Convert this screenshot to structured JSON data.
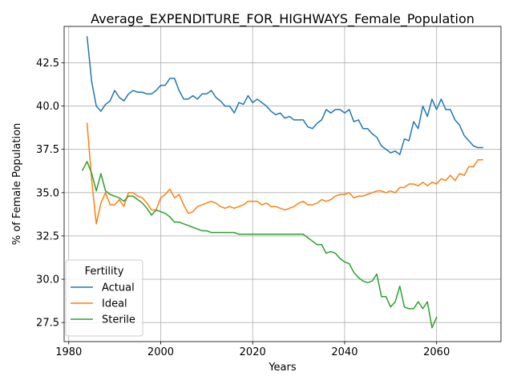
{
  "chart_data": {
    "type": "line",
    "title": "Average_EXPENDITURE_FOR_HIGHWAYS_Female_Population",
    "xlabel": "Years",
    "ylabel": "% of Female Population",
    "xlim": [
      1979,
      2074
    ],
    "ylim": [
      26.4,
      44.6
    ],
    "xticks": [
      1980,
      2000,
      2020,
      2040,
      2060
    ],
    "yticks": [
      27.5,
      30.0,
      32.5,
      35.0,
      37.5,
      40.0,
      42.5
    ],
    "xtick_labels": [
      "1980",
      "2000",
      "2020",
      "2040",
      "2060"
    ],
    "ytick_labels": [
      "27.5",
      "30.0",
      "32.5",
      "35.0",
      "37.5",
      "40.0",
      "42.5"
    ],
    "grid": true,
    "legend": {
      "title": "Fertility",
      "position": "lower-left"
    },
    "series": [
      {
        "name": "Actual",
        "color": "#1f77b4",
        "x": [
          1984,
          1985,
          1986,
          1987,
          1988,
          1989,
          1990,
          1991,
          1992,
          1993,
          1994,
          1995,
          1996,
          1997,
          1998,
          1999,
          2000,
          2001,
          2002,
          2003,
          2004,
          2005,
          2006,
          2007,
          2008,
          2009,
          2010,
          2011,
          2012,
          2013,
          2014,
          2015,
          2016,
          2017,
          2018,
          2019,
          2020,
          2021,
          2022,
          2023,
          2024,
          2025,
          2026,
          2027,
          2028,
          2029,
          2030,
          2031,
          2032,
          2033,
          2034,
          2035,
          2036,
          2037,
          2038,
          2039,
          2040,
          2041,
          2042,
          2043,
          2044,
          2045,
          2046,
          2047,
          2048,
          2049,
          2050,
          2051,
          2052,
          2053,
          2054,
          2055,
          2056,
          2057,
          2058,
          2059,
          2060,
          2061,
          2062,
          2063,
          2064,
          2065,
          2066,
          2067,
          2068,
          2069,
          2070
        ],
        "y": [
          44.0,
          41.4,
          40.0,
          39.7,
          40.1,
          40.3,
          40.9,
          40.5,
          40.3,
          40.7,
          40.9,
          40.8,
          40.8,
          40.7,
          40.7,
          40.9,
          41.2,
          41.2,
          41.6,
          41.6,
          40.9,
          40.4,
          40.4,
          40.6,
          40.4,
          40.7,
          40.7,
          40.9,
          40.5,
          40.3,
          40.0,
          40.0,
          39.6,
          40.2,
          40.1,
          40.6,
          40.2,
          40.4,
          40.2,
          40.0,
          39.7,
          39.5,
          39.6,
          39.3,
          39.4,
          39.2,
          39.2,
          39.2,
          38.8,
          38.7,
          39.0,
          39.2,
          39.8,
          39.6,
          39.8,
          39.8,
          39.6,
          39.8,
          39.1,
          39.2,
          38.7,
          38.7,
          38.4,
          38.2,
          37.7,
          37.5,
          37.3,
          37.4,
          37.2,
          38.1,
          38.0,
          39.1,
          38.7,
          40.0,
          39.4,
          40.4,
          39.8,
          40.4,
          39.8,
          39.8,
          39.2,
          38.9,
          38.3,
          38.0,
          37.7,
          37.6,
          37.6
        ]
      },
      {
        "name": "Ideal",
        "color": "#ff7f0e",
        "x": [
          1984,
          1985,
          1986,
          1987,
          1988,
          1989,
          1990,
          1991,
          1992,
          1993,
          1994,
          1995,
          1996,
          1997,
          1998,
          1999,
          2000,
          2001,
          2002,
          2003,
          2004,
          2005,
          2006,
          2007,
          2008,
          2009,
          2010,
          2011,
          2012,
          2013,
          2014,
          2015,
          2016,
          2017,
          2018,
          2019,
          2020,
          2021,
          2022,
          2023,
          2024,
          2025,
          2026,
          2027,
          2028,
          2029,
          2030,
          2031,
          2032,
          2033,
          2034,
          2035,
          2036,
          2037,
          2038,
          2039,
          2040,
          2041,
          2042,
          2043,
          2044,
          2045,
          2046,
          2047,
          2048,
          2049,
          2050,
          2051,
          2052,
          2053,
          2054,
          2055,
          2056,
          2057,
          2058,
          2059,
          2060,
          2061,
          2062,
          2063,
          2064,
          2065,
          2066,
          2067,
          2068,
          2069,
          2070
        ],
        "y": [
          39.0,
          35.7,
          33.2,
          34.4,
          35.0,
          34.3,
          34.3,
          34.6,
          34.2,
          35.0,
          35.0,
          34.8,
          34.7,
          34.4,
          34.0,
          34.0,
          34.7,
          34.9,
          35.2,
          34.7,
          34.9,
          34.3,
          33.8,
          33.9,
          34.2,
          34.3,
          34.4,
          34.5,
          34.4,
          34.2,
          34.1,
          34.2,
          34.1,
          34.2,
          34.3,
          34.5,
          34.5,
          34.5,
          34.3,
          34.4,
          34.2,
          34.2,
          34.1,
          34.0,
          34.1,
          34.2,
          34.4,
          34.5,
          34.3,
          34.3,
          34.4,
          34.6,
          34.5,
          34.6,
          34.8,
          34.9,
          34.9,
          35.0,
          34.7,
          34.8,
          34.8,
          34.9,
          35.0,
          35.1,
          35.1,
          35.0,
          35.1,
          35.0,
          35.3,
          35.3,
          35.5,
          35.5,
          35.4,
          35.6,
          35.4,
          35.6,
          35.5,
          35.8,
          35.7,
          36.0,
          35.7,
          36.1,
          36.0,
          36.5,
          36.5,
          36.9,
          36.9
        ]
      },
      {
        "name": "Sterile",
        "color": "#2ca02c",
        "x": [
          1983,
          1984,
          1985,
          1986,
          1987,
          1988,
          1989,
          1990,
          1991,
          1992,
          1993,
          1994,
          1995,
          1996,
          1997,
          1998,
          1999,
          2000,
          2001,
          2002,
          2003,
          2004,
          2005,
          2006,
          2007,
          2008,
          2009,
          2010,
          2011,
          2012,
          2013,
          2014,
          2015,
          2016,
          2017,
          2018,
          2019,
          2020,
          2021,
          2022,
          2023,
          2024,
          2025,
          2026,
          2027,
          2028,
          2029,
          2030,
          2031,
          2032,
          2033,
          2034,
          2035,
          2036,
          2037,
          2038,
          2039,
          2040,
          2041,
          2042,
          2043,
          2044,
          2045,
          2046,
          2047,
          2048,
          2049,
          2050,
          2051,
          2052,
          2053,
          2054,
          2055,
          2056,
          2057,
          2058,
          2059,
          2060
        ],
        "y": [
          36.3,
          36.8,
          36.1,
          35.1,
          36.1,
          35.1,
          34.9,
          34.8,
          34.7,
          34.5,
          34.8,
          34.8,
          34.6,
          34.4,
          34.1,
          33.7,
          34.0,
          33.9,
          33.8,
          33.6,
          33.3,
          33.3,
          33.2,
          33.1,
          33.0,
          32.9,
          32.8,
          32.8,
          32.7,
          32.7,
          32.7,
          32.7,
          32.7,
          32.7,
          32.6,
          32.6,
          32.6,
          32.6,
          32.6,
          32.6,
          32.6,
          32.6,
          32.6,
          32.6,
          32.6,
          32.6,
          32.6,
          32.6,
          32.6,
          32.4,
          32.2,
          32.0,
          32.0,
          31.5,
          31.6,
          31.5,
          31.2,
          31.0,
          30.9,
          30.4,
          30.1,
          29.9,
          29.8,
          29.9,
          30.3,
          29.0,
          29.0,
          28.4,
          28.7,
          29.6,
          28.4,
          28.3,
          28.3,
          28.7,
          28.3,
          28.7,
          27.2,
          27.8
        ]
      }
    ]
  }
}
